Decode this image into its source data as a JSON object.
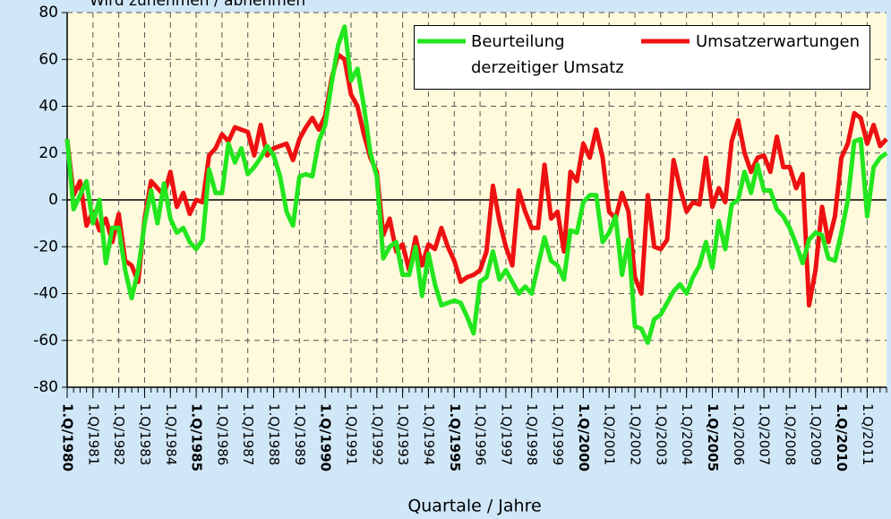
{
  "chart_data": {
    "type": "line",
    "annotation": "Wird zunehmen / abnehmen",
    "xlabel": "Quartale / Jahre",
    "xlim": [
      1980,
      2011.75
    ],
    "ylim": [
      -80,
      80
    ],
    "yticks": [
      -80,
      -60,
      -40,
      -20,
      0,
      20,
      40,
      60,
      80
    ],
    "xticks": [
      {
        "value": 1980,
        "label": "1.Q/1980"
      },
      {
        "value": 1981,
        "label": "1.Q/1981"
      },
      {
        "value": 1982,
        "label": "1.Q/1982"
      },
      {
        "value": 1983,
        "label": "1.Q/1983"
      },
      {
        "value": 1984,
        "label": "1.Q/1984"
      },
      {
        "value": 1985,
        "label": "1.Q/1985"
      },
      {
        "value": 1986,
        "label": "1.Q/1986"
      },
      {
        "value": 1987,
        "label": "1.Q/1987"
      },
      {
        "value": 1988,
        "label": "1.Q/1988"
      },
      {
        "value": 1989,
        "label": "1.Q/1989"
      },
      {
        "value": 1990,
        "label": "1.Q/1990"
      },
      {
        "value": 1991,
        "label": "1.Q/1991"
      },
      {
        "value": 1992,
        "label": "1.Q/1992"
      },
      {
        "value": 1993,
        "label": "1.Q/1993"
      },
      {
        "value": 1994,
        "label": "1.Q/1994"
      },
      {
        "value": 1995,
        "label": "1.Q/1995"
      },
      {
        "value": 1996,
        "label": "1.Q/1996"
      },
      {
        "value": 1997,
        "label": "1.Q/1997"
      },
      {
        "value": 1998,
        "label": "1.Q/1998"
      },
      {
        "value": 1999,
        "label": "1.Q/1999"
      },
      {
        "value": 2000,
        "label": "1.Q/2000"
      },
      {
        "value": 2001,
        "label": "1.Q/2001"
      },
      {
        "value": 2002,
        "label": "1.Q/2002"
      },
      {
        "value": 2003,
        "label": "1.Q/2003"
      },
      {
        "value": 2004,
        "label": "1.Q/2004"
      },
      {
        "value": 2005,
        "label": "1.Q/2005"
      },
      {
        "value": 2006,
        "label": "1.Q/2006"
      },
      {
        "value": 2007,
        "label": "1.Q/2007"
      },
      {
        "value": 2008,
        "label": "1.Q/2008"
      },
      {
        "value": 2009,
        "label": "1.Q/2009"
      },
      {
        "value": 2010,
        "label": "1.Q/2010"
      },
      {
        "value": 2011,
        "label": "1.Q/2011"
      }
    ],
    "grid": true,
    "legend": "upper right",
    "x": [
      1980,
      1980.25,
      1980.5,
      1980.75,
      1981,
      1981.25,
      1981.5,
      1981.75,
      1982,
      1982.25,
      1982.5,
      1982.75,
      1983,
      1983.25,
      1983.5,
      1983.75,
      1984,
      1984.25,
      1984.5,
      1984.75,
      1985,
      1985.25,
      1985.5,
      1985.75,
      1986,
      1986.25,
      1986.5,
      1986.75,
      1987,
      1987.25,
      1987.5,
      1987.75,
      1988,
      1988.25,
      1988.5,
      1988.75,
      1989,
      1989.25,
      1989.5,
      1989.75,
      1990,
      1990.25,
      1990.5,
      1990.75,
      1991,
      1991.25,
      1991.5,
      1991.75,
      1992,
      1992.25,
      1992.5,
      1992.75,
      1993,
      1993.25,
      1993.5,
      1993.75,
      1994,
      1994.25,
      1994.5,
      1994.75,
      1995,
      1995.25,
      1995.5,
      1995.75,
      1996,
      1996.25,
      1996.5,
      1996.75,
      1997,
      1997.25,
      1997.5,
      1997.75,
      1998,
      1998.25,
      1998.5,
      1998.75,
      1999,
      1999.25,
      1999.5,
      1999.75,
      2000,
      2000.25,
      2000.5,
      2000.75,
      2001,
      2001.25,
      2001.5,
      2001.75,
      2002,
      2002.25,
      2002.5,
      2002.75,
      2003,
      2003.25,
      2003.5,
      2003.75,
      2004,
      2004.25,
      2004.5,
      2004.75,
      2005,
      2005.25,
      2005.5,
      2005.75,
      2006,
      2006.25,
      2006.5,
      2006.75,
      2007,
      2007.25,
      2007.5,
      2007.75,
      2008,
      2008.25,
      2008.5,
      2008.75,
      2009,
      2009.25,
      2009.5,
      2009.75,
      2010,
      2010.25,
      2010.5,
      2010.75,
      2011,
      2011.25,
      2011.5,
      2011.75
    ],
    "series": [
      {
        "name": "Beurteilung derzeitiger Umsatz",
        "color": "#22e61e",
        "values": [
          26,
          -4,
          2,
          8,
          -10,
          0,
          -27,
          -12,
          -12,
          -30,
          -42,
          -30,
          -10,
          4,
          -10,
          7,
          -8,
          -14,
          -12,
          -18,
          -21,
          -17,
          13,
          3,
          3,
          24,
          16,
          22,
          11,
          14,
          18,
          23,
          19,
          10,
          -5,
          -11,
          10,
          11,
          10,
          25,
          32,
          50,
          66,
          74,
          51,
          56,
          40,
          20,
          10,
          -25,
          -20,
          -18,
          -32,
          -32,
          -20,
          -41,
          -23,
          -36,
          -45,
          -44,
          -43,
          -44,
          -50,
          -57,
          -35,
          -33,
          -22,
          -34,
          -30,
          -35,
          -40,
          -37,
          -40,
          -28,
          -16,
          -26,
          -28,
          -34,
          -13,
          -14,
          -1,
          2,
          2,
          -18,
          -14,
          -7,
          -32,
          -17,
          -54,
          -55,
          -61,
          -51,
          -49,
          -44,
          -39,
          -36,
          -40,
          -33,
          -28,
          -18,
          -29,
          -9,
          -21,
          -2,
          0,
          12,
          3,
          15,
          4,
          4,
          -4,
          -7,
          -12,
          -19,
          -27,
          -17,
          -14,
          -15,
          -25,
          -26,
          -14,
          0,
          25,
          26,
          -7,
          14,
          18,
          20
        ]
      },
      {
        "name": "Umsatzerwartungen",
        "color": "#ee1111",
        "values": [
          26,
          2,
          8,
          -11,
          -5,
          -13,
          -8,
          -18,
          -6,
          -26,
          -28,
          -35,
          -8,
          8,
          5,
          2,
          12,
          -3,
          3,
          -6,
          0,
          -1,
          19,
          22,
          28,
          25,
          31,
          30,
          29,
          19,
          32,
          19,
          22,
          23,
          24,
          17,
          26,
          31,
          35,
          30,
          36,
          52,
          62,
          60,
          45,
          40,
          28,
          18,
          12,
          -15,
          -8,
          -22,
          -19,
          -30,
          -16,
          -28,
          -19,
          -21,
          -12,
          -20,
          -26,
          -35,
          -33,
          -32,
          -30,
          -22,
          6,
          -9,
          -20,
          -28,
          4,
          -5,
          -12,
          -12,
          15,
          -8,
          -5,
          -22,
          12,
          8,
          24,
          18,
          30,
          18,
          -5,
          -8,
          3,
          -5,
          -33,
          -40,
          2,
          -20,
          -21,
          -17,
          17,
          5,
          -5,
          -1,
          -2,
          18,
          -3,
          5,
          -1,
          25,
          34,
          20,
          12,
          18,
          19,
          12,
          27,
          14,
          14,
          5,
          11,
          -45,
          -30,
          -3,
          -18,
          -7,
          18,
          24,
          37,
          35,
          24,
          32,
          23,
          26
        ]
      }
    ]
  }
}
